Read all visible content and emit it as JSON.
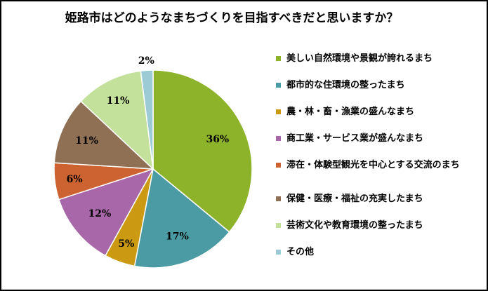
{
  "chart_data": {
    "type": "pie",
    "title": "姫路市はどのようなまちづくりを目指すべきだと思いますか？",
    "categories": [
      "美しい自然環境や景観が誇れるまち",
      "都市的な住環境の整ったまち",
      "農・林・畜・漁業の盛んなまち",
      "商工業・サービス業が盛んなまち",
      "滞在・体験型観光を中心とする交流のまち",
      "保健・医療・福祉の充実したまち",
      "芸術文化や教育環境の整ったまち",
      "その他"
    ],
    "values": [
      36,
      17,
      5,
      12,
      6,
      11,
      11,
      2
    ],
    "value_labels": [
      "36%",
      "17%",
      "5%",
      "12%",
      "6%",
      "11%",
      "11%",
      "2%"
    ],
    "colors": [
      "#8db32a",
      "#4a9ba4",
      "#cc9a12",
      "#a867a8",
      "#cc6330",
      "#8f7055",
      "#c4e19b",
      "#9ccbd5"
    ],
    "legend_position": "right"
  }
}
